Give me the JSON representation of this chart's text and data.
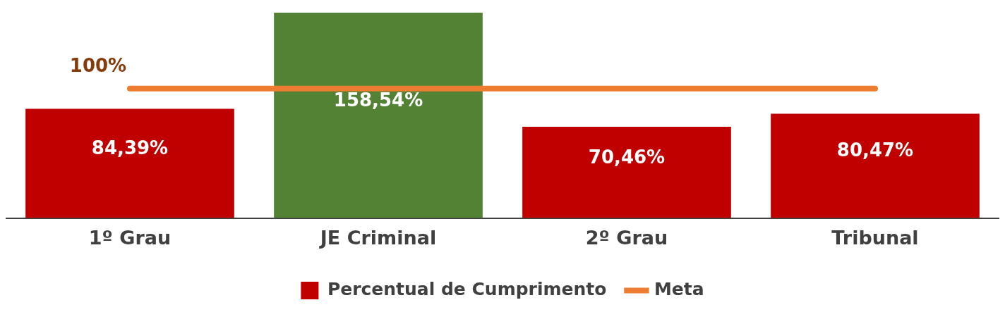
{
  "chart_data": {
    "type": "bar",
    "categories": [
      "1º Grau",
      "JE Criminal",
      "2º Grau",
      "Tribunal"
    ],
    "series": [
      {
        "name": "Percentual de Cumprimento",
        "color": "#c00000",
        "colors": [
          "#c00000",
          "#548235",
          "#c00000",
          "#c00000"
        ],
        "values": [
          84.39,
          158.54,
          70.46,
          80.47
        ],
        "value_labels": [
          "84,39%",
          "158,54%",
          "70,46%",
          "80,47%"
        ]
      },
      {
        "type": "line",
        "name": "Meta",
        "color": "#ed7d31",
        "values": [
          100,
          100,
          100,
          100
        ]
      }
    ],
    "annotations": [
      {
        "text": "100%",
        "x": "1º Grau",
        "y": 100
      }
    ],
    "legend": "bottom",
    "grid": false,
    "marker": "none",
    "tick_labels": "x"
  }
}
